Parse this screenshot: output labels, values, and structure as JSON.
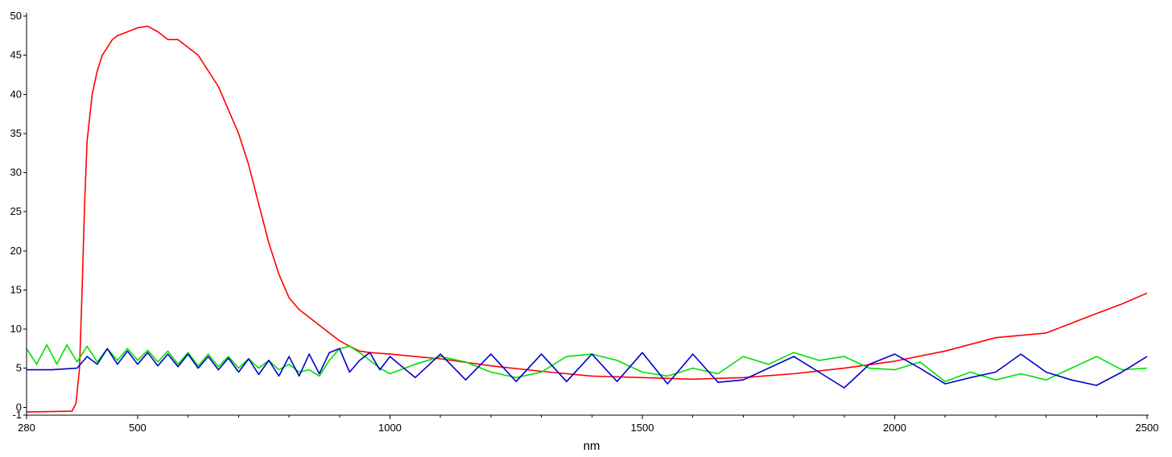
{
  "chart_data": {
    "type": "line",
    "title": "",
    "xlabel": "nm",
    "ylabel": "",
    "xlim": [
      280,
      2500
    ],
    "ylim": [
      -1,
      50
    ],
    "grid": false,
    "legend": "none",
    "x_ticks": [
      "280",
      "500",
      "1000",
      "1500",
      "2000",
      "2500"
    ],
    "y_ticks": [
      "-1",
      "0",
      "5",
      "10",
      "15",
      "20",
      "25",
      "30",
      "35",
      "40",
      "45",
      "50"
    ],
    "x_tick_values": [
      280,
      500,
      1000,
      1500,
      2000,
      2500
    ],
    "y_tick_values": [
      -1,
      0,
      5,
      10,
      15,
      20,
      25,
      30,
      35,
      40,
      45,
      50
    ],
    "series": [
      {
        "color": "#ff0000",
        "x": [
          280,
          370,
          378,
          385,
          390,
          395,
          400,
          410,
          420,
          430,
          440,
          450,
          460,
          480,
          500,
          520,
          540,
          560,
          580,
          600,
          620,
          640,
          660,
          680,
          700,
          720,
          740,
          760,
          780,
          800,
          820,
          840,
          860,
          880,
          900,
          920,
          940,
          960,
          1000,
          1100,
          1200,
          1300,
          1400,
          1500,
          1600,
          1700,
          1800,
          1900,
          2000,
          2100,
          2200,
          2300,
          2400,
          2450,
          2500
        ],
        "y": [
          -0.6,
          -0.5,
          0.5,
          5,
          15,
          26,
          34,
          40,
          43,
          45,
          46,
          47,
          47.5,
          48,
          48.5,
          48.7,
          48,
          47,
          47,
          46,
          45,
          43,
          41,
          38,
          35,
          31,
          26,
          21,
          17,
          14,
          12.5,
          11.5,
          10.5,
          9.5,
          8.5,
          7.8,
          7.2,
          7,
          6.8,
          6.2,
          5.3,
          4.6,
          4.0,
          3.8,
          3.6,
          3.8,
          4.3,
          5.0,
          5.9,
          7.2,
          8.9,
          9.5,
          12.0,
          13.2,
          14.6
        ]
      },
      {
        "color": "#00e000",
        "x": [
          280,
          300,
          320,
          340,
          360,
          380,
          400,
          420,
          440,
          460,
          480,
          500,
          520,
          540,
          560,
          580,
          600,
          620,
          640,
          660,
          680,
          700,
          720,
          740,
          760,
          780,
          800,
          820,
          840,
          860,
          880,
          900,
          920,
          940,
          960,
          980,
          1000,
          1050,
          1100,
          1150,
          1200,
          1250,
          1300,
          1350,
          1400,
          1450,
          1500,
          1550,
          1600,
          1650,
          1700,
          1750,
          1800,
          1850,
          1900,
          1950,
          2000,
          2050,
          2100,
          2150,
          2200,
          2250,
          2300,
          2350,
          2400,
          2450,
          2500
        ],
        "y": [
          7.5,
          5.5,
          8,
          5.5,
          8,
          5.8,
          7.8,
          5.8,
          7.5,
          6,
          7.5,
          6,
          7.3,
          5.8,
          7.2,
          5.5,
          7,
          5.3,
          6.8,
          5.2,
          6.5,
          5,
          6.2,
          5,
          6,
          4.8,
          5.5,
          4.5,
          4.8,
          4,
          6,
          7.5,
          7.8,
          7,
          6,
          5,
          4.3,
          5.5,
          6.5,
          5.8,
          4.5,
          3.8,
          4.5,
          6.5,
          6.8,
          6,
          4.5,
          4,
          5,
          4.3,
          6.5,
          5.5,
          7,
          6,
          6.5,
          5,
          4.8,
          5.8,
          3.3,
          4.5,
          3.5,
          4.3,
          3.5,
          5,
          6.5,
          4.8,
          5
        ]
      },
      {
        "color": "#0000cc",
        "x": [
          280,
          330,
          380,
          400,
          420,
          440,
          460,
          480,
          500,
          520,
          540,
          560,
          580,
          600,
          620,
          640,
          660,
          680,
          700,
          720,
          740,
          760,
          780,
          800,
          820,
          840,
          860,
          880,
          900,
          920,
          940,
          960,
          980,
          1000,
          1050,
          1100,
          1150,
          1200,
          1250,
          1300,
          1350,
          1400,
          1450,
          1500,
          1550,
          1600,
          1650,
          1700,
          1750,
          1800,
          1850,
          1900,
          1950,
          2000,
          2050,
          2100,
          2150,
          2200,
          2250,
          2300,
          2350,
          2400,
          2450,
          2500
        ],
        "y": [
          4.8,
          4.8,
          5,
          6.5,
          5.5,
          7.5,
          5.5,
          7.2,
          5.5,
          7,
          5.3,
          6.8,
          5.2,
          6.8,
          5,
          6.5,
          4.8,
          6.3,
          4.5,
          6.2,
          4.2,
          6,
          4,
          6.5,
          4,
          6.8,
          4.3,
          7,
          7.5,
          4.5,
          6,
          7,
          4.8,
          6.5,
          3.8,
          6.8,
          3.5,
          6.8,
          3.3,
          6.8,
          3.3,
          6.8,
          3.3,
          7,
          3,
          6.8,
          3.2,
          3.5,
          5,
          6.5,
          4.5,
          2.5,
          5.5,
          6.8,
          5,
          3,
          3.8,
          4.5,
          6.8,
          4.5,
          3.5,
          2.8,
          4.5,
          6.5
        ]
      }
    ]
  }
}
